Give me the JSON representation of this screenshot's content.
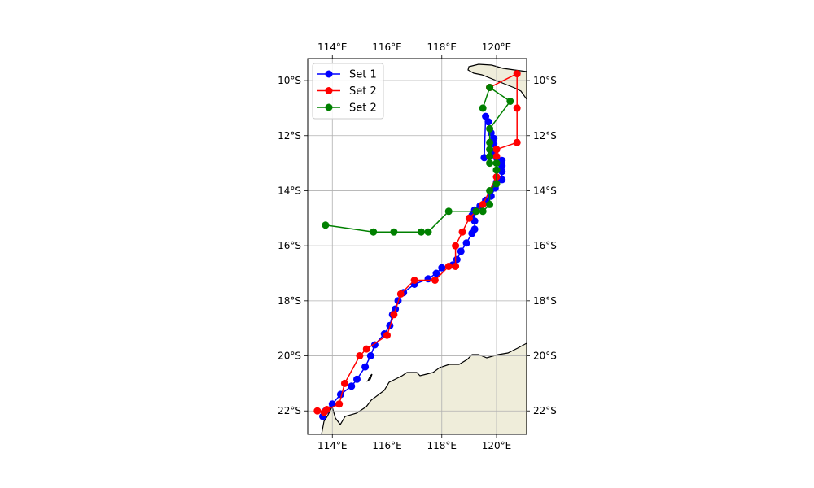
{
  "chart_data": {
    "type": "line",
    "title": "",
    "xlabel": "",
    "ylabel": "",
    "xlim": [
      113.1,
      121.1
    ],
    "ylim": [
      -22.85,
      -9.2
    ],
    "grid": true,
    "legend_position": "top-left",
    "x_ticks": [
      {
        "value": 114,
        "label": "114°E"
      },
      {
        "value": 116,
        "label": "116°E"
      },
      {
        "value": 118,
        "label": "118°E"
      },
      {
        "value": 120,
        "label": "120°E"
      }
    ],
    "y_ticks": [
      {
        "value": -10,
        "label": "10°S"
      },
      {
        "value": -12,
        "label": "12°S"
      },
      {
        "value": -14,
        "label": "14°S"
      },
      {
        "value": -16,
        "label": "16°S"
      },
      {
        "value": -18,
        "label": "18°S"
      },
      {
        "value": -20,
        "label": "20°S"
      },
      {
        "value": -22,
        "label": "22°S"
      }
    ],
    "series": [
      {
        "name": "Set 1",
        "color": "#0000ff",
        "points": [
          [
            113.65,
            -22.2
          ],
          [
            113.75,
            -22.0
          ],
          [
            114.0,
            -21.75
          ],
          [
            114.3,
            -21.4
          ],
          [
            114.7,
            -21.1
          ],
          [
            114.9,
            -20.85
          ],
          [
            115.2,
            -20.4
          ],
          [
            115.4,
            -20.0
          ],
          [
            115.55,
            -19.6
          ],
          [
            115.9,
            -19.2
          ],
          [
            116.1,
            -18.9
          ],
          [
            116.2,
            -18.5
          ],
          [
            116.3,
            -18.3
          ],
          [
            116.4,
            -18.0
          ],
          [
            116.6,
            -17.7
          ],
          [
            117.0,
            -17.4
          ],
          [
            117.5,
            -17.2
          ],
          [
            117.8,
            -17.0
          ],
          [
            118.0,
            -16.8
          ],
          [
            118.4,
            -16.7
          ],
          [
            118.55,
            -16.5
          ],
          [
            118.7,
            -16.2
          ],
          [
            118.9,
            -15.9
          ],
          [
            119.1,
            -15.55
          ],
          [
            119.2,
            -15.4
          ],
          [
            119.2,
            -15.1
          ],
          [
            119.1,
            -14.9
          ],
          [
            119.2,
            -14.7
          ],
          [
            119.4,
            -14.55
          ],
          [
            119.6,
            -14.35
          ],
          [
            119.8,
            -14.2
          ],
          [
            119.95,
            -13.9
          ],
          [
            120.0,
            -13.7
          ],
          [
            120.2,
            -13.6
          ],
          [
            120.2,
            -13.3
          ],
          [
            120.2,
            -13.1
          ],
          [
            120.2,
            -12.9
          ],
          [
            120.0,
            -12.8
          ],
          [
            119.9,
            -12.65
          ],
          [
            120.0,
            -12.5
          ],
          [
            119.9,
            -12.3
          ],
          [
            119.9,
            -12.1
          ],
          [
            119.8,
            -11.9
          ],
          [
            119.7,
            -11.5
          ],
          [
            119.6,
            -11.3
          ],
          [
            119.55,
            -12.8
          ]
        ]
      },
      {
        "name": "Set 2",
        "color": "#ff0000",
        "points": [
          [
            113.45,
            -22.0
          ],
          [
            113.7,
            -22.05
          ],
          [
            113.8,
            -21.95
          ],
          [
            114.25,
            -21.75
          ],
          [
            114.45,
            -21.0
          ],
          [
            115.0,
            -20.0
          ],
          [
            115.25,
            -19.75
          ],
          [
            116.0,
            -19.25
          ],
          [
            116.25,
            -18.5
          ],
          [
            116.5,
            -17.75
          ],
          [
            117.0,
            -17.25
          ],
          [
            117.75,
            -17.25
          ],
          [
            118.25,
            -16.75
          ],
          [
            118.5,
            -16.75
          ],
          [
            118.5,
            -16.0
          ],
          [
            118.75,
            -15.5
          ],
          [
            119.0,
            -15.0
          ],
          [
            119.5,
            -14.5
          ],
          [
            120.0,
            -13.5
          ],
          [
            120.0,
            -12.75
          ],
          [
            120.0,
            -12.5
          ],
          [
            120.75,
            -12.25
          ],
          [
            120.75,
            -11.0
          ],
          [
            120.75,
            -9.75
          ],
          [
            119.75,
            -10.25
          ],
          [
            119.75,
            -10.25
          ]
        ]
      },
      {
        "name": "Set 2",
        "color": "#008000",
        "points": [
          [
            113.75,
            -15.25
          ],
          [
            115.5,
            -15.5
          ],
          [
            116.25,
            -15.5
          ],
          [
            117.25,
            -15.5
          ],
          [
            117.5,
            -15.5
          ],
          [
            118.25,
            -14.75
          ],
          [
            119.25,
            -14.75
          ],
          [
            119.5,
            -14.75
          ],
          [
            119.75,
            -14.5
          ],
          [
            119.75,
            -14.0
          ],
          [
            120.0,
            -13.75
          ],
          [
            120.0,
            -13.25
          ],
          [
            120.0,
            -13.0
          ],
          [
            119.75,
            -13.0
          ],
          [
            119.75,
            -12.75
          ],
          [
            119.75,
            -12.5
          ],
          [
            119.75,
            -12.25
          ],
          [
            119.75,
            -11.75
          ],
          [
            120.5,
            -10.75
          ],
          [
            119.75,
            -10.25
          ],
          [
            119.5,
            -11.0
          ]
        ]
      }
    ]
  }
}
